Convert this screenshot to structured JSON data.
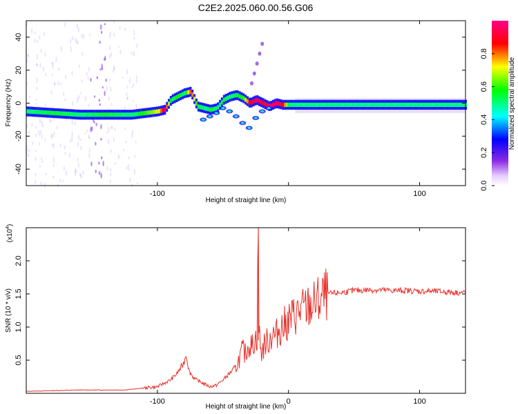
{
  "title": "C2E2.2025.060.00.56.G06",
  "chart_data": [
    {
      "type": "heatmap",
      "xlabel": "Height of straight line (km)",
      "ylabel": "Frequency (Hz)",
      "xlim": [
        -200,
        135
      ],
      "ylim": [
        -50,
        50
      ],
      "xticks": [
        -100,
        0,
        100
      ],
      "xtick_labels": [
        "-100",
        "",
        "100"
      ],
      "yticks": [
        -40,
        -20,
        0,
        20,
        40
      ],
      "ytick_labels": [
        "-40",
        "-20",
        "0",
        "20",
        "40"
      ],
      "grid": false,
      "ridge": {
        "x": [
          -200,
          -180,
          -160,
          -140,
          -120,
          -110,
          -100,
          -95,
          -90,
          -85,
          -80,
          -75,
          -70,
          -65,
          -60,
          -55,
          -50,
          -45,
          -40,
          -35,
          -30,
          -25,
          -20,
          -15,
          -10,
          -5,
          0,
          5,
          10,
          20,
          40,
          60,
          80,
          100,
          120,
          135
        ],
        "y": [
          -5,
          -6,
          -7,
          -7,
          -7,
          -6,
          -5,
          -4,
          2,
          4,
          6,
          7,
          -2,
          -3,
          -4,
          -3,
          2,
          4,
          5,
          3,
          0,
          2,
          0,
          -2,
          0,
          -1,
          -1,
          -1,
          -1,
          -1,
          -1,
          -1,
          -1,
          -1,
          -1,
          -1
        ],
        "amplitude": [
          0.5,
          0.55,
          0.5,
          0.55,
          0.5,
          0.6,
          0.7,
          0.95,
          0.5,
          0.6,
          0.5,
          0.85,
          0.55,
          0.5,
          0.55,
          0.5,
          0.55,
          0.5,
          0.55,
          0.6,
          0.9,
          0.95,
          0.9,
          0.95,
          0.95,
          0.9,
          0.5,
          0.5,
          0.5,
          0.5,
          0.5,
          0.5,
          0.5,
          0.5,
          0.5,
          0.5
        ]
      },
      "branch": {
        "x": [
          -65,
          -60,
          -55,
          -50,
          -45,
          -40,
          -35,
          -30,
          -25,
          -20,
          -15
        ],
        "y": [
          -10,
          -8,
          -6,
          -3,
          -5,
          -8,
          -12,
          -15,
          -9,
          -5,
          -3
        ]
      },
      "colorbar": {
        "label": "Normalized spectral amplitude",
        "ticks": [
          0.0,
          0.2,
          0.4,
          0.6,
          0.8
        ],
        "tick_labels": [
          "0.0",
          "0.2",
          "0.4",
          "0.6",
          "0.8"
        ],
        "range": [
          0,
          1
        ]
      }
    },
    {
      "type": "line",
      "xlabel": "Height of straight line (km)",
      "ylabel": "SNR (10 * v/v)",
      "y_multiplier": "(x10",
      "y_multiplier_exp": "4",
      "y_multiplier_close": ")",
      "xlim": [
        -200,
        135
      ],
      "ylim": [
        0,
        2.5
      ],
      "xticks": [
        -100,
        0,
        100
      ],
      "xtick_labels": [
        "-100",
        "0",
        "100"
      ],
      "yticks": [
        0.5,
        1.0,
        1.5,
        2.0
      ],
      "ytick_labels": [
        "0.5",
        "1.0",
        "1.5",
        "2.0"
      ],
      "grid": false,
      "series": [
        {
          "color": "#e8302a",
          "x": [
            -200,
            -180,
            -160,
            -140,
            -125,
            -110,
            -100,
            -95,
            -90,
            -85,
            -80,
            -78,
            -76,
            -73,
            -70,
            -65,
            -60,
            -55,
            -50,
            -45,
            -40,
            -38,
            -35,
            -33,
            -30,
            -28,
            -26,
            -24,
            -23,
            -22.5,
            -22,
            -21,
            -20,
            -18,
            -15,
            -12,
            -10,
            -8,
            -5,
            -2,
            0,
            3,
            6,
            10,
            15,
            20,
            25,
            30,
            40,
            50,
            60,
            70,
            80,
            90,
            100,
            110,
            120,
            130,
            135
          ],
          "y": [
            0.03,
            0.04,
            0.05,
            0.05,
            0.05,
            0.08,
            0.1,
            0.15,
            0.2,
            0.3,
            0.45,
            0.6,
            0.35,
            0.25,
            0.2,
            0.15,
            0.1,
            0.12,
            0.2,
            0.3,
            0.4,
            0.5,
            0.65,
            0.6,
            0.75,
            0.7,
            0.8,
            0.85,
            2.5,
            1.0,
            0.85,
            0.6,
            0.65,
            0.75,
            0.8,
            0.9,
            0.85,
            0.95,
            1.0,
            1.05,
            1.1,
            1.15,
            1.2,
            1.25,
            1.3,
            1.35,
            1.42,
            1.5,
            1.52,
            1.55,
            1.56,
            1.56,
            1.55,
            1.55,
            1.54,
            1.54,
            1.53,
            1.52,
            1.52
          ]
        }
      ]
    }
  ]
}
